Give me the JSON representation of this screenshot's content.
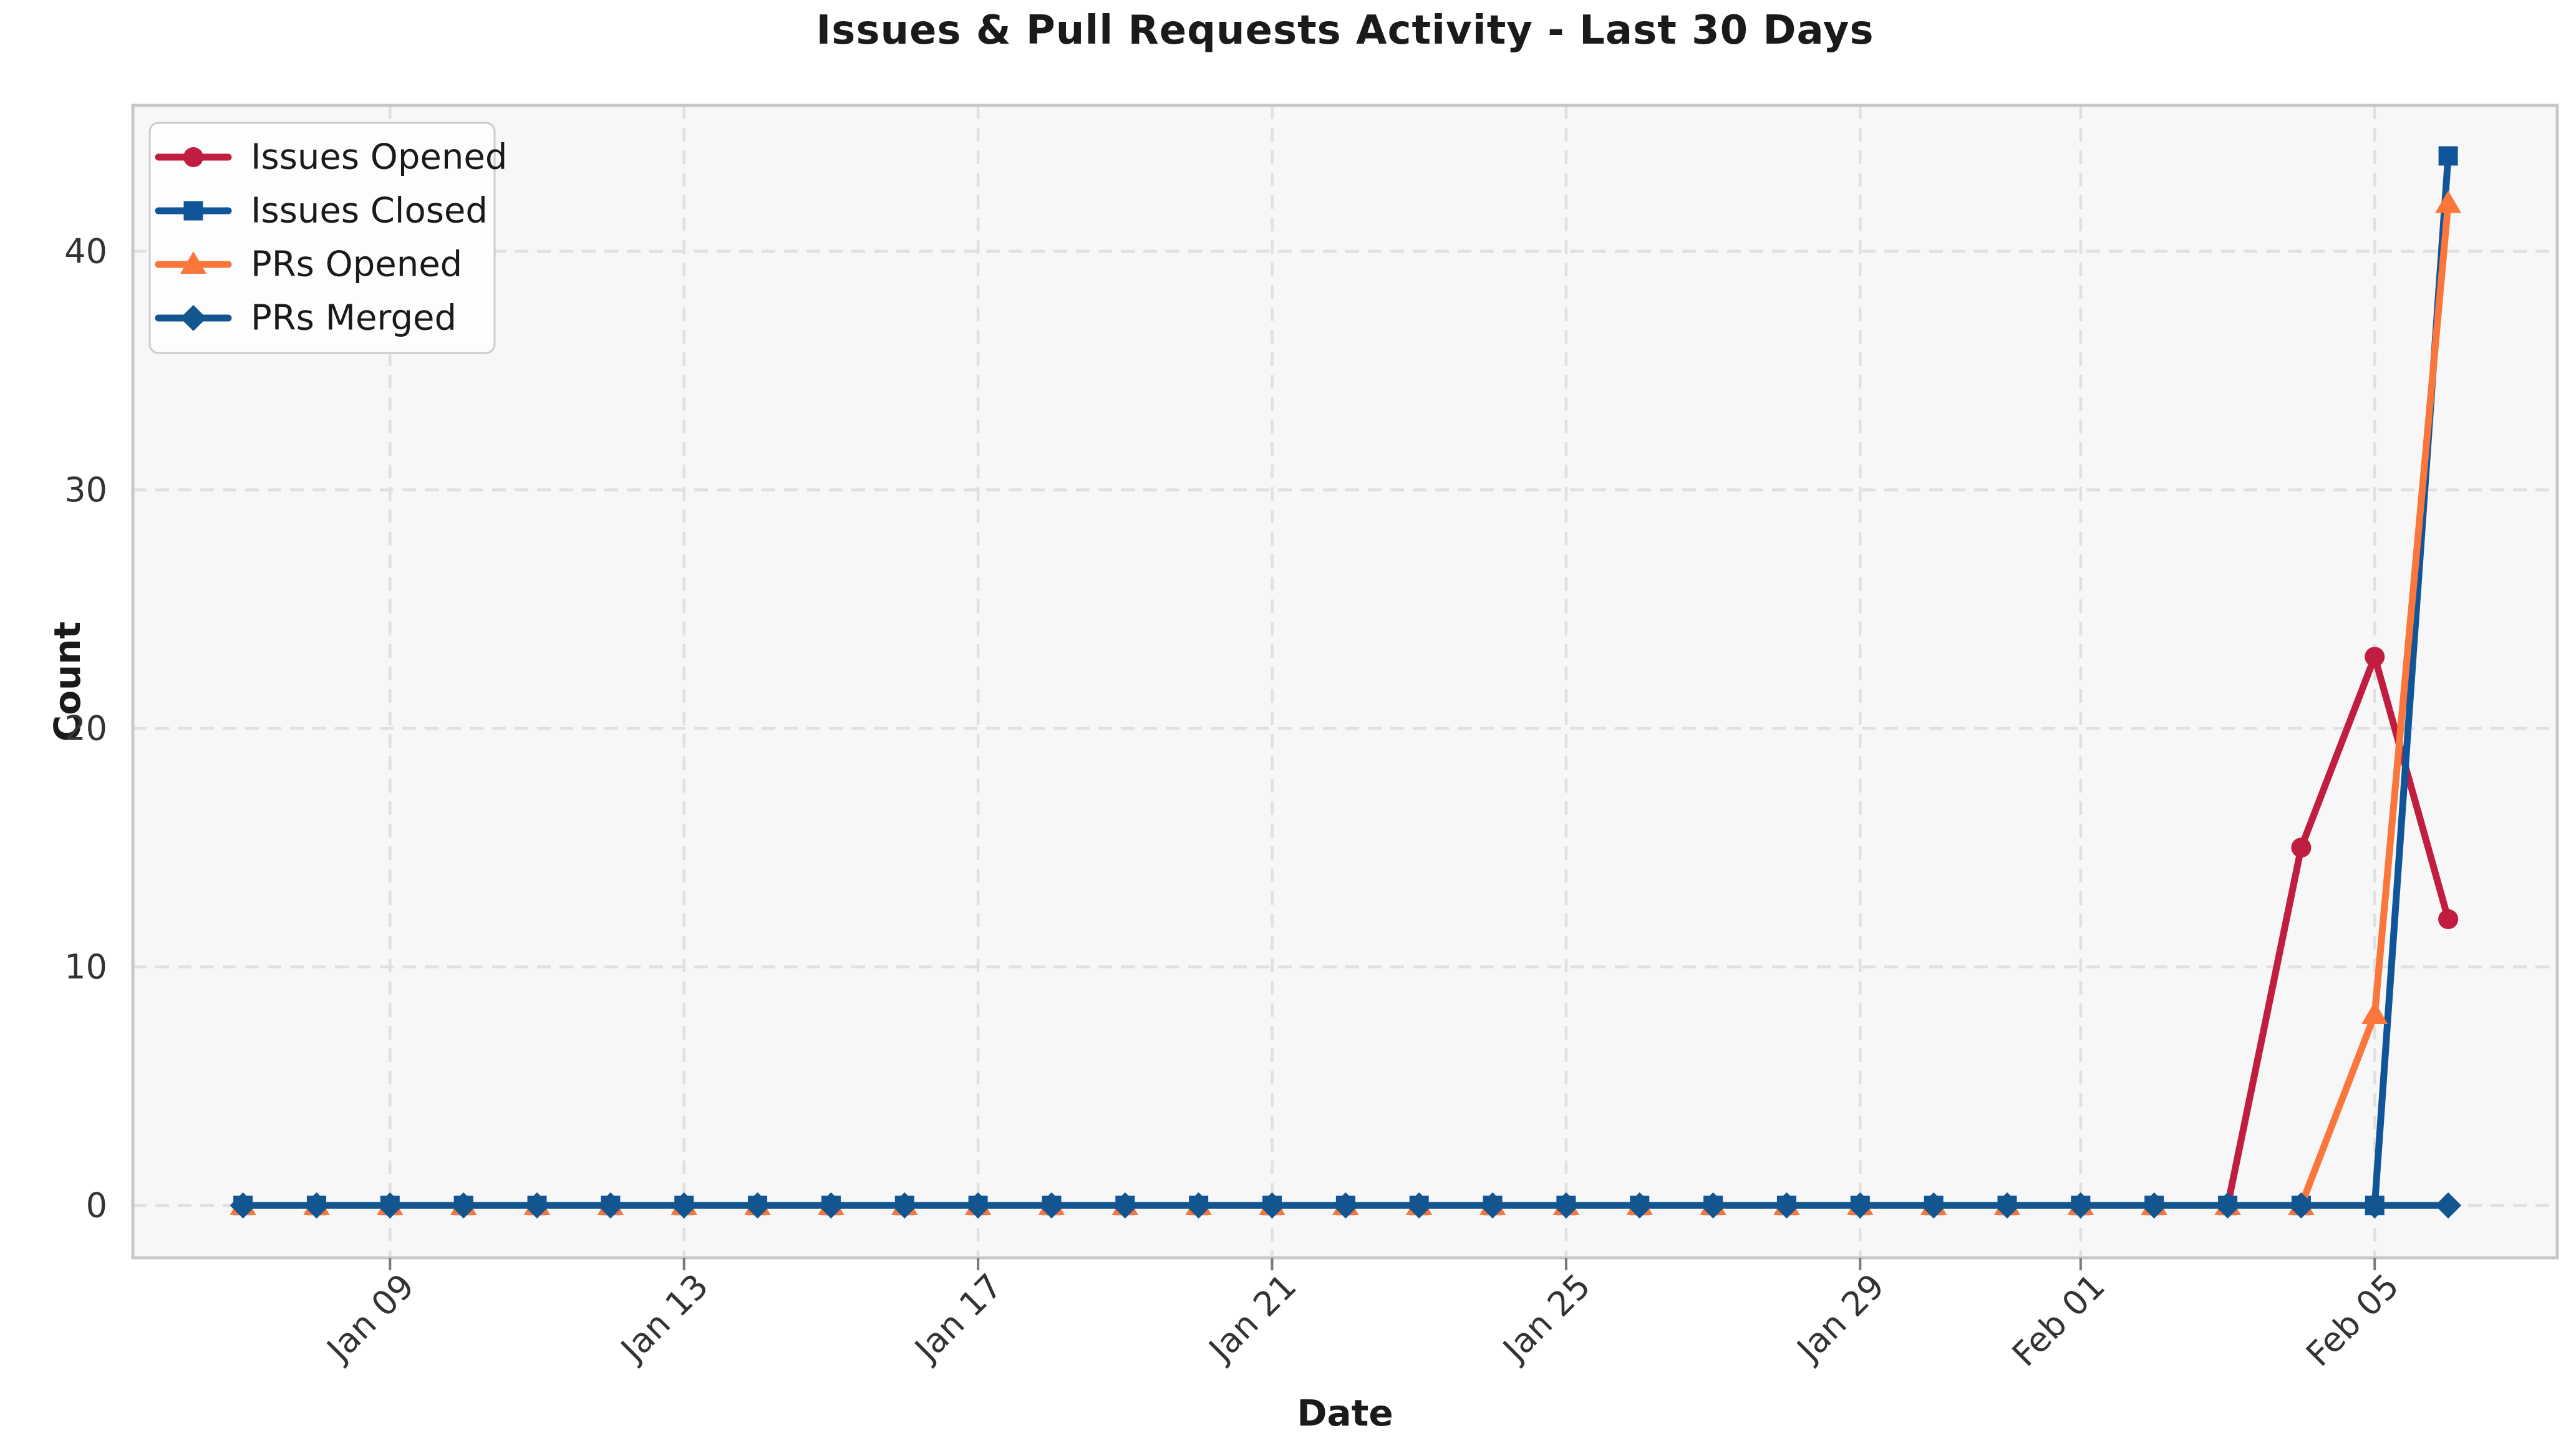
{
  "chart_data": {
    "type": "line",
    "title": "Issues & Pull Requests Activity - Last 30 Days",
    "xlabel": "Date",
    "ylabel": "Count",
    "grid": true,
    "grid_style": "dashed",
    "legend_position": "upper left",
    "plot_background": "#f7f7f7",
    "figure_background": "#ffffff",
    "ylim": [
      -2.2,
      46.2
    ],
    "y_ticks": [
      0,
      10,
      20,
      30,
      40
    ],
    "x_tick_labels": [
      "Jan 09",
      "Jan 13",
      "Jan 17",
      "Jan 21",
      "Jan 25",
      "Jan 29",
      "Feb 01",
      "Feb 05"
    ],
    "x": [
      "Jan 07",
      "Jan 08",
      "Jan 09",
      "Jan 10",
      "Jan 11",
      "Jan 12",
      "Jan 13",
      "Jan 14",
      "Jan 15",
      "Jan 16",
      "Jan 17",
      "Jan 18",
      "Jan 19",
      "Jan 20",
      "Jan 21",
      "Jan 22",
      "Jan 23",
      "Jan 24",
      "Jan 25",
      "Jan 26",
      "Jan 27",
      "Jan 28",
      "Jan 29",
      "Jan 30",
      "Jan 31",
      "Feb 01",
      "Feb 02",
      "Feb 03",
      "Feb 04",
      "Feb 05",
      "Feb 06"
    ],
    "series": [
      {
        "name": "Issues Opened",
        "color": "#c01d40",
        "marker": "circle",
        "values": [
          0,
          0,
          0,
          0,
          0,
          0,
          0,
          0,
          0,
          0,
          0,
          0,
          0,
          0,
          0,
          0,
          0,
          0,
          0,
          0,
          0,
          0,
          0,
          0,
          0,
          0,
          0,
          0,
          15,
          23,
          12
        ]
      },
      {
        "name": "Issues Closed",
        "color": "#10559a",
        "marker": "square",
        "values": [
          0,
          0,
          0,
          0,
          0,
          0,
          0,
          0,
          0,
          0,
          0,
          0,
          0,
          0,
          0,
          0,
          0,
          0,
          0,
          0,
          0,
          0,
          0,
          0,
          0,
          0,
          0,
          0,
          0,
          0,
          44
        ]
      },
      {
        "name": "PRs Opened",
        "color": "#fa763a",
        "marker": "triangle",
        "values": [
          0,
          0,
          0,
          0,
          0,
          0,
          0,
          0,
          0,
          0,
          0,
          0,
          0,
          0,
          0,
          0,
          0,
          0,
          0,
          0,
          0,
          0,
          0,
          0,
          0,
          0,
          0,
          0,
          0,
          8,
          42
        ]
      },
      {
        "name": "PRs Merged",
        "color": "#12558f",
        "marker": "diamond",
        "values": [
          0,
          0,
          0,
          0,
          0,
          0,
          0,
          0,
          0,
          0,
          0,
          0,
          0,
          0,
          0,
          0,
          0,
          0,
          0,
          0,
          0,
          0,
          0,
          0,
          0,
          0,
          0,
          0,
          0,
          0,
          0
        ]
      }
    ]
  }
}
